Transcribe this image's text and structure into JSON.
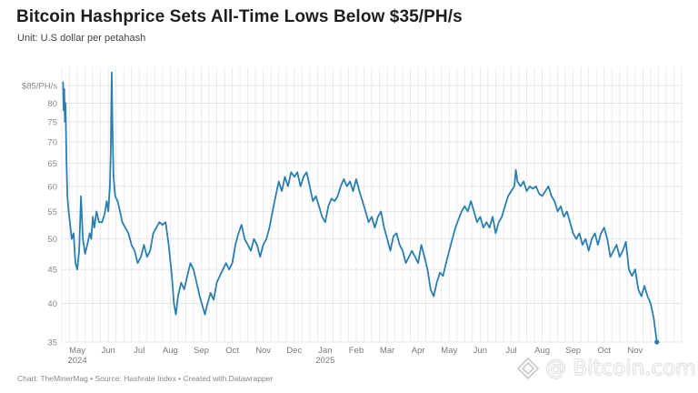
{
  "header": {
    "title": "Bitcoin Hashprice Sets All-Time Lows Below $35/PH/s",
    "subtitle": "Unit: U.S dollar per petahash"
  },
  "footer": {
    "source": "Chart: TheMinerMag • Source: Hashrate Index • Created with Datawrapper"
  },
  "watermark": {
    "text": "@ Bitcoin.com",
    "icon": "bitcoin-com-logo-icon"
  },
  "colors": {
    "line": "#2a7fb0",
    "grid": "#e3e3e3",
    "axis_text": "#8a8a8a"
  },
  "chart_data": {
    "type": "line",
    "title": "Bitcoin Hashprice Sets All-Time Lows Below $35/PH/s",
    "ylabel": "Unit: U.S dollar per petahash",
    "y_scale": "log",
    "ylim": [
      35,
      90
    ],
    "y_ticks": [
      {
        "value": 85,
        "label": "$85/PH/s"
      },
      {
        "value": 80,
        "label": "80"
      },
      {
        "value": 75,
        "label": "75"
      },
      {
        "value": 70,
        "label": "70"
      },
      {
        "value": 65,
        "label": "65"
      },
      {
        "value": 60,
        "label": "60"
      },
      {
        "value": 55,
        "label": "55"
      },
      {
        "value": 50,
        "label": "50"
      },
      {
        "value": 45,
        "label": "45"
      },
      {
        "value": 40,
        "label": "40"
      },
      {
        "value": 35,
        "label": "35"
      }
    ],
    "x_range_months": [
      0,
      20
    ],
    "x_ticks": [
      {
        "label": "May",
        "sublabel": "2024",
        "m": 0.5
      },
      {
        "label": "Jun",
        "sublabel": "",
        "m": 1.5
      },
      {
        "label": "Jul",
        "sublabel": "",
        "m": 2.5
      },
      {
        "label": "Aug",
        "sublabel": "",
        "m": 3.5
      },
      {
        "label": "Sep",
        "sublabel": "",
        "m": 4.5
      },
      {
        "label": "Oct",
        "sublabel": "",
        "m": 5.5
      },
      {
        "label": "Nov",
        "sublabel": "",
        "m": 6.5
      },
      {
        "label": "Dec",
        "sublabel": "",
        "m": 7.5
      },
      {
        "label": "Jan",
        "sublabel": "2025",
        "m": 8.5
      },
      {
        "label": "Feb",
        "sublabel": "",
        "m": 9.5
      },
      {
        "label": "Mar",
        "sublabel": "",
        "m": 10.5
      },
      {
        "label": "Apr",
        "sublabel": "",
        "m": 11.5
      },
      {
        "label": "May",
        "sublabel": "",
        "m": 12.5
      },
      {
        "label": "Jun",
        "sublabel": "",
        "m": 13.5
      },
      {
        "label": "Jul",
        "sublabel": "",
        "m": 14.5
      },
      {
        "label": "Aug",
        "sublabel": "",
        "m": 15.5
      },
      {
        "label": "Sep",
        "sublabel": "",
        "m": 16.5
      },
      {
        "label": "Oct",
        "sublabel": "",
        "m": 17.5
      },
      {
        "label": "Nov",
        "sublabel": "",
        "m": 18.5
      }
    ],
    "series": [
      {
        "name": "Hashprice",
        "points": [
          [
            0.04,
            86
          ],
          [
            0.06,
            78
          ],
          [
            0.08,
            84
          ],
          [
            0.1,
            75
          ],
          [
            0.12,
            80
          ],
          [
            0.15,
            66
          ],
          [
            0.18,
            58
          ],
          [
            0.22,
            55
          ],
          [
            0.26,
            53
          ],
          [
            0.32,
            50
          ],
          [
            0.38,
            51
          ],
          [
            0.44,
            46
          ],
          [
            0.5,
            45
          ],
          [
            0.56,
            48
          ],
          [
            0.62,
            58
          ],
          [
            0.68,
            50
          ],
          [
            0.75,
            47.5
          ],
          [
            0.82,
            49
          ],
          [
            0.9,
            51
          ],
          [
            0.95,
            50
          ],
          [
            1.0,
            54
          ],
          [
            1.05,
            52
          ],
          [
            1.12,
            55
          ],
          [
            1.2,
            53
          ],
          [
            1.3,
            53
          ],
          [
            1.38,
            54.5
          ],
          [
            1.45,
            57
          ],
          [
            1.5,
            55
          ],
          [
            1.55,
            60
          ],
          [
            1.58,
            68
          ],
          [
            1.61,
            89
          ],
          [
            1.64,
            72
          ],
          [
            1.67,
            62
          ],
          [
            1.72,
            58
          ],
          [
            1.8,
            57
          ],
          [
            1.88,
            55
          ],
          [
            1.95,
            53
          ],
          [
            2.05,
            52
          ],
          [
            2.15,
            51
          ],
          [
            2.25,
            49
          ],
          [
            2.35,
            48
          ],
          [
            2.45,
            46
          ],
          [
            2.55,
            47
          ],
          [
            2.65,
            49
          ],
          [
            2.75,
            47
          ],
          [
            2.85,
            48
          ],
          [
            2.95,
            51
          ],
          [
            3.05,
            52
          ],
          [
            3.15,
            53
          ],
          [
            3.25,
            52.5
          ],
          [
            3.35,
            53
          ],
          [
            3.45,
            49
          ],
          [
            3.55,
            44
          ],
          [
            3.62,
            40
          ],
          [
            3.68,
            38.5
          ],
          [
            3.75,
            41
          ],
          [
            3.85,
            43
          ],
          [
            3.95,
            42
          ],
          [
            4.05,
            44
          ],
          [
            4.15,
            46
          ],
          [
            4.25,
            45
          ],
          [
            4.35,
            43
          ],
          [
            4.45,
            41
          ],
          [
            4.55,
            39.5
          ],
          [
            4.62,
            38.5
          ],
          [
            4.7,
            40
          ],
          [
            4.8,
            41.5
          ],
          [
            4.9,
            40.5
          ],
          [
            5.0,
            43
          ],
          [
            5.1,
            44
          ],
          [
            5.2,
            45
          ],
          [
            5.3,
            46
          ],
          [
            5.4,
            45
          ],
          [
            5.5,
            46
          ],
          [
            5.6,
            49
          ],
          [
            5.7,
            51
          ],
          [
            5.8,
            52.5
          ],
          [
            5.9,
            50
          ],
          [
            6.0,
            49
          ],
          [
            6.1,
            48
          ],
          [
            6.2,
            50
          ],
          [
            6.3,
            49
          ],
          [
            6.4,
            47
          ],
          [
            6.5,
            49
          ],
          [
            6.6,
            50
          ],
          [
            6.7,
            52
          ],
          [
            6.8,
            55
          ],
          [
            6.9,
            58
          ],
          [
            7.0,
            61
          ],
          [
            7.1,
            59
          ],
          [
            7.2,
            62
          ],
          [
            7.3,
            60
          ],
          [
            7.4,
            63
          ],
          [
            7.5,
            62
          ],
          [
            7.6,
            63
          ],
          [
            7.7,
            60
          ],
          [
            7.8,
            62
          ],
          [
            7.9,
            63
          ],
          [
            8.0,
            60
          ],
          [
            8.1,
            57
          ],
          [
            8.2,
            58
          ],
          [
            8.3,
            56
          ],
          [
            8.4,
            54
          ],
          [
            8.5,
            53
          ],
          [
            8.6,
            56
          ],
          [
            8.7,
            57.5
          ],
          [
            8.8,
            57
          ],
          [
            8.9,
            58
          ],
          [
            9.0,
            60
          ],
          [
            9.1,
            61.5
          ],
          [
            9.2,
            60
          ],
          [
            9.3,
            61
          ],
          [
            9.4,
            59
          ],
          [
            9.5,
            61.5
          ],
          [
            9.6,
            59
          ],
          [
            9.7,
            57
          ],
          [
            9.8,
            55
          ],
          [
            9.9,
            53
          ],
          [
            10.0,
            54
          ],
          [
            10.1,
            52
          ],
          [
            10.2,
            54
          ],
          [
            10.3,
            55
          ],
          [
            10.4,
            52
          ],
          [
            10.5,
            50
          ],
          [
            10.6,
            48
          ],
          [
            10.7,
            50.5
          ],
          [
            10.8,
            51
          ],
          [
            10.9,
            49
          ],
          [
            11.0,
            48
          ],
          [
            11.1,
            46
          ],
          [
            11.2,
            47
          ],
          [
            11.3,
            48
          ],
          [
            11.4,
            47
          ],
          [
            11.5,
            46
          ],
          [
            11.6,
            49
          ],
          [
            11.7,
            47
          ],
          [
            11.8,
            45
          ],
          [
            11.9,
            42
          ],
          [
            12.0,
            41
          ],
          [
            12.1,
            43
          ],
          [
            12.2,
            44.5
          ],
          [
            12.3,
            44
          ],
          [
            12.4,
            46
          ],
          [
            12.5,
            48
          ],
          [
            12.6,
            50
          ],
          [
            12.7,
            52
          ],
          [
            12.8,
            53.5
          ],
          [
            12.9,
            55
          ],
          [
            13.0,
            56
          ],
          [
            13.1,
            55
          ],
          [
            13.2,
            57
          ],
          [
            13.3,
            55
          ],
          [
            13.4,
            53
          ],
          [
            13.5,
            54
          ],
          [
            13.6,
            52
          ],
          [
            13.7,
            53
          ],
          [
            13.8,
            52
          ],
          [
            13.9,
            54
          ],
          [
            14.0,
            51
          ],
          [
            14.1,
            53
          ],
          [
            14.2,
            54
          ],
          [
            14.3,
            56
          ],
          [
            14.4,
            58
          ],
          [
            14.5,
            59
          ],
          [
            14.6,
            60
          ],
          [
            14.65,
            63.5
          ],
          [
            14.7,
            61
          ],
          [
            14.8,
            60
          ],
          [
            14.9,
            61
          ],
          [
            15.0,
            59
          ],
          [
            15.1,
            60
          ],
          [
            15.2,
            59.5
          ],
          [
            15.3,
            60
          ],
          [
            15.4,
            58.5
          ],
          [
            15.5,
            58
          ],
          [
            15.6,
            59
          ],
          [
            15.7,
            60
          ],
          [
            15.8,
            58
          ],
          [
            15.9,
            57
          ],
          [
            16.0,
            55
          ],
          [
            16.1,
            56
          ],
          [
            16.2,
            54
          ],
          [
            16.3,
            55
          ],
          [
            16.4,
            53
          ],
          [
            16.5,
            51
          ],
          [
            16.6,
            50
          ],
          [
            16.7,
            51
          ],
          [
            16.8,
            49
          ],
          [
            16.9,
            50
          ],
          [
            17.0,
            48
          ],
          [
            17.1,
            50
          ],
          [
            17.2,
            51
          ],
          [
            17.3,
            49
          ],
          [
            17.4,
            51
          ],
          [
            17.5,
            52
          ],
          [
            17.6,
            50
          ],
          [
            17.7,
            47
          ],
          [
            17.8,
            48
          ],
          [
            17.9,
            49
          ],
          [
            18.0,
            47
          ],
          [
            18.1,
            48
          ],
          [
            18.2,
            49.5
          ],
          [
            18.3,
            45
          ],
          [
            18.4,
            44
          ],
          [
            18.5,
            45
          ],
          [
            18.6,
            42
          ],
          [
            18.7,
            41
          ],
          [
            18.8,
            42.5
          ],
          [
            18.9,
            41
          ],
          [
            19.0,
            40
          ],
          [
            19.1,
            38
          ],
          [
            19.2,
            35
          ]
        ]
      }
    ]
  }
}
